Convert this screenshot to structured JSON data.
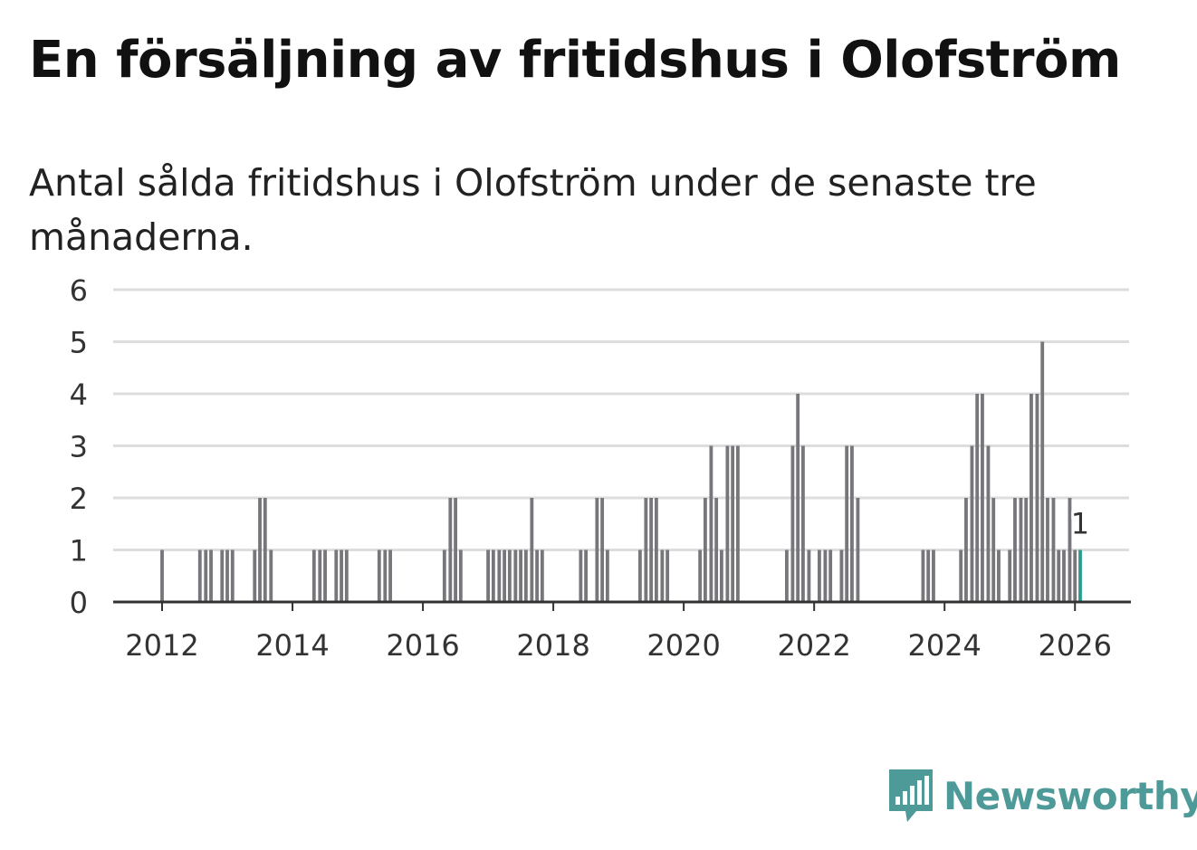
{
  "title": "En försäljning av fritidshus i Olofström",
  "subtitle": "Antal sålda fritidshus i Olofström under de senaste tre månaderna.",
  "brand": {
    "name": "Newsworthy",
    "color": "#4d9a99",
    "icon": "bar-chart-speech-bubble-icon"
  },
  "colors": {
    "bar": "#77767b",
    "highlight": "#2a9d8f",
    "grid": "#dddddd",
    "axis": "#333333"
  },
  "chart_data": {
    "type": "bar",
    "title": "En försäljning av fritidshus i Olofström",
    "xlabel": "",
    "ylabel": "",
    "ylim": [
      0,
      6
    ],
    "yticks": [
      0,
      1,
      2,
      3,
      4,
      5,
      6
    ],
    "xlim": [
      2011.25,
      2026.83
    ],
    "xticks": [
      "2012",
      "2014",
      "2016",
      "2018",
      "2020",
      "2022",
      "2024",
      "2026"
    ],
    "bar_width_years": 0.0625,
    "highlight_label": "1",
    "series": [
      {
        "name": "Antal sålda fritidshus",
        "x": [
          2012.0,
          2012.58,
          2012.67,
          2012.75,
          2012.92,
          2013.0,
          2013.08,
          2013.42,
          2013.5,
          2013.58,
          2013.67,
          2014.33,
          2014.42,
          2014.5,
          2014.67,
          2014.75,
          2014.83,
          2015.33,
          2015.42,
          2015.5,
          2016.33,
          2016.42,
          2016.5,
          2016.58,
          2017.0,
          2017.08,
          2017.17,
          2017.25,
          2017.33,
          2017.42,
          2017.5,
          2017.58,
          2017.67,
          2017.75,
          2017.83,
          2018.42,
          2018.5,
          2018.67,
          2018.75,
          2018.83,
          2019.33,
          2019.42,
          2019.5,
          2019.58,
          2019.67,
          2019.75,
          2020.25,
          2020.33,
          2020.42,
          2020.5,
          2020.58,
          2020.67,
          2020.75,
          2020.83,
          2021.58,
          2021.67,
          2021.75,
          2021.83,
          2021.92,
          2022.08,
          2022.17,
          2022.25,
          2022.42,
          2022.5,
          2022.58,
          2022.67,
          2023.67,
          2023.75,
          2023.83,
          2024.25,
          2024.33,
          2024.42,
          2024.5,
          2024.58,
          2024.67,
          2024.75,
          2024.83,
          2025.0,
          2025.08,
          2025.17,
          2025.25,
          2025.33,
          2025.42,
          2025.5,
          2025.58,
          2025.67,
          2025.75,
          2025.83,
          2025.92,
          2026.0,
          2026.08
        ],
        "values": [
          1,
          1,
          1,
          1,
          1,
          1,
          1,
          1,
          2,
          2,
          1,
          1,
          1,
          1,
          1,
          1,
          1,
          1,
          1,
          1,
          1,
          2,
          2,
          1,
          1,
          1,
          1,
          1,
          1,
          1,
          1,
          1,
          2,
          1,
          1,
          1,
          1,
          2,
          2,
          1,
          1,
          2,
          2,
          2,
          1,
          1,
          1,
          2,
          3,
          2,
          1,
          3,
          3,
          3,
          1,
          3,
          4,
          3,
          1,
          1,
          1,
          1,
          1,
          3,
          3,
          2,
          1,
          1,
          1,
          1,
          2,
          3,
          4,
          4,
          3,
          2,
          1,
          1,
          2,
          2,
          2,
          4,
          4,
          5,
          2,
          2,
          1,
          1,
          2,
          1,
          1
        ],
        "highlight_index": 90
      }
    ]
  }
}
